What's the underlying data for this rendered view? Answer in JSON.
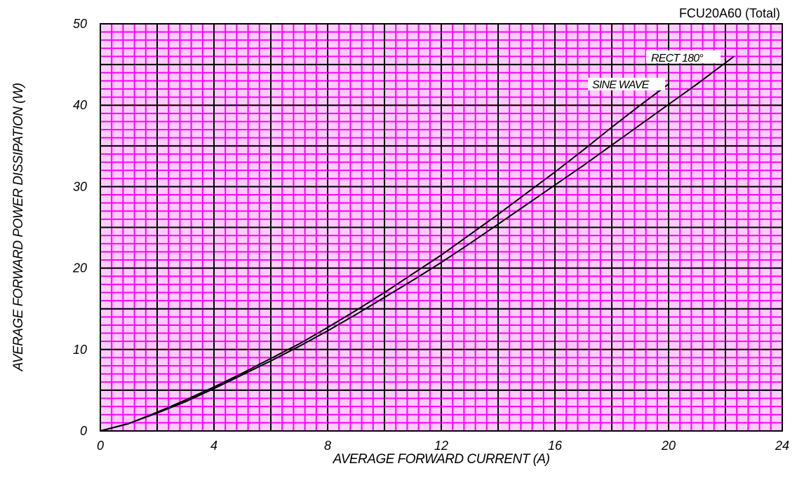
{
  "chart_data": {
    "type": "line",
    "title": "FCU20A60 (Total)",
    "xlabel": "AVERAGE FORWARD CURRENT (A)",
    "ylabel": "AVERAGE FORWARD POWER DISSIPATION (W)",
    "xlim": [
      0,
      24
    ],
    "ylim": [
      0,
      50
    ],
    "x_ticks": [
      "0",
      "4",
      "8",
      "12",
      "16",
      "20",
      "24"
    ],
    "y_ticks": [
      "0",
      "10",
      "20",
      "30",
      "40",
      "50"
    ],
    "grid": true,
    "grid_colors": {
      "minor": "#ff00ff",
      "major": "#000000",
      "background": "#ffccff"
    },
    "series": [
      {
        "name": "SINE WAVE",
        "color": "#000000",
        "points": [
          [
            0,
            0
          ],
          [
            1,
            0.9
          ],
          [
            2,
            2.3
          ],
          [
            3,
            3.8
          ],
          [
            4,
            5.4
          ],
          [
            5,
            7.1
          ],
          [
            6,
            8.9
          ],
          [
            7,
            10.7
          ],
          [
            8,
            12.7
          ],
          [
            9,
            14.8
          ],
          [
            10,
            17.0
          ],
          [
            11,
            19.3
          ],
          [
            12,
            21.6
          ],
          [
            13,
            24.1
          ],
          [
            14,
            26.6
          ],
          [
            15,
            29.2
          ],
          [
            16,
            31.8
          ],
          [
            17,
            34.5
          ],
          [
            18,
            37.3
          ],
          [
            19,
            40.0
          ],
          [
            20,
            42.6
          ]
        ]
      },
      {
        "name": "RECT 180°",
        "color": "#000000",
        "points": [
          [
            0,
            0
          ],
          [
            1,
            0.9
          ],
          [
            2,
            2.2
          ],
          [
            3,
            3.6
          ],
          [
            4,
            5.2
          ],
          [
            5,
            6.9
          ],
          [
            6,
            8.6
          ],
          [
            7,
            10.4
          ],
          [
            8,
            12.3
          ],
          [
            9,
            14.3
          ],
          [
            10,
            16.4
          ],
          [
            11,
            18.5
          ],
          [
            12,
            20.7
          ],
          [
            13,
            23.0
          ],
          [
            14,
            25.4
          ],
          [
            15,
            27.8
          ],
          [
            16,
            30.2
          ],
          [
            17,
            32.6
          ],
          [
            18,
            35.1
          ],
          [
            19,
            37.6
          ],
          [
            20,
            40.1
          ],
          [
            21,
            42.6
          ],
          [
            22.3,
            46.0
          ]
        ]
      }
    ]
  }
}
